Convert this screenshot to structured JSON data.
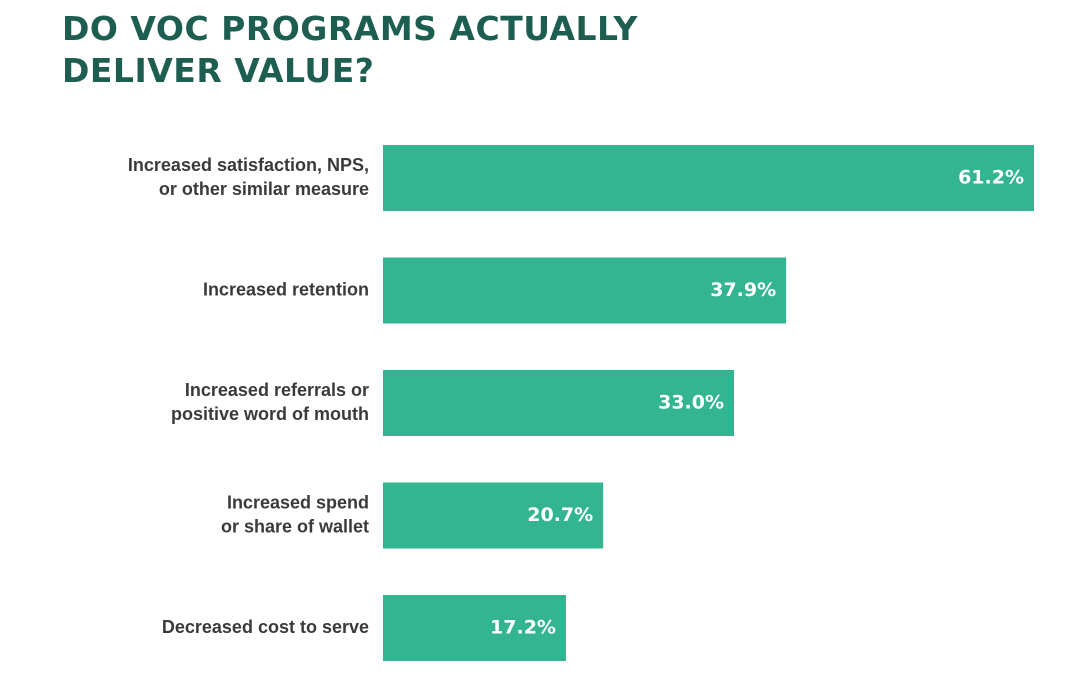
{
  "title_lines": [
    "DO VOC PROGRAMS ACTUALLY",
    "DELIVER VALUE?"
  ],
  "colors": {
    "title": "#1e5e51",
    "bar": "#33b592",
    "label": "#3a3a3a",
    "value_text": "#ffffff"
  },
  "chart_data": {
    "type": "bar",
    "orientation": "horizontal",
    "title": "DO VOC PROGRAMS ACTUALLY DELIVER VALUE?",
    "categories": [
      [
        "Increased satisfaction, NPS,",
        "or other similar measure"
      ],
      [
        "Increased retention"
      ],
      [
        "Increased referrals or",
        "positive word of mouth"
      ],
      [
        "Increased spend",
        "or share of wallet"
      ],
      [
        "Decreased cost to serve"
      ]
    ],
    "values": [
      61.2,
      37.9,
      33.0,
      20.7,
      17.2
    ],
    "value_labels": [
      "61.2%",
      "37.9%",
      "33.0%",
      "20.7%",
      "17.2%"
    ],
    "unit": "%",
    "xlabel": "",
    "ylabel": "",
    "xlim": [
      0,
      61.2
    ],
    "grid": false,
    "legend": "none"
  }
}
